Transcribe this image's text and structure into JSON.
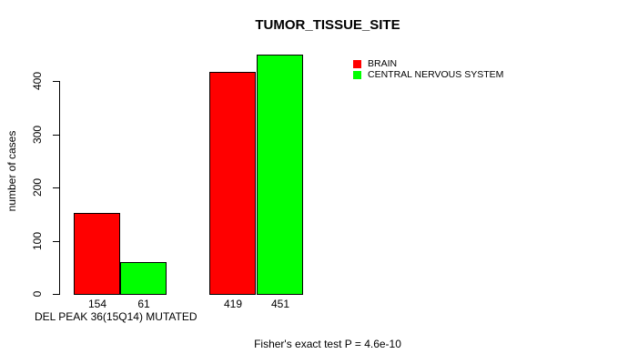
{
  "chart_data": {
    "type": "bar",
    "title": "TUMOR_TISSUE_SITE",
    "ylabel": "number of cases",
    "xlabel": "DEL PEAK 36(15Q14) MUTATED",
    "footnote": "Fisher's exact test P = 4.6e-10",
    "yticks": [
      0,
      100,
      200,
      300,
      400
    ],
    "ylim": [
      0,
      460
    ],
    "grid": false,
    "legend_position": "top-right",
    "series": [
      {
        "name": "BRAIN",
        "color": "#FF0000",
        "values": [
          154,
          419
        ]
      },
      {
        "name": "CENTRAL NERVOUS SYSTEM",
        "color": "#00FF00",
        "values": [
          61,
          451
        ]
      }
    ],
    "bar_value_labels": [
      "154",
      "61",
      "419",
      "451"
    ]
  }
}
